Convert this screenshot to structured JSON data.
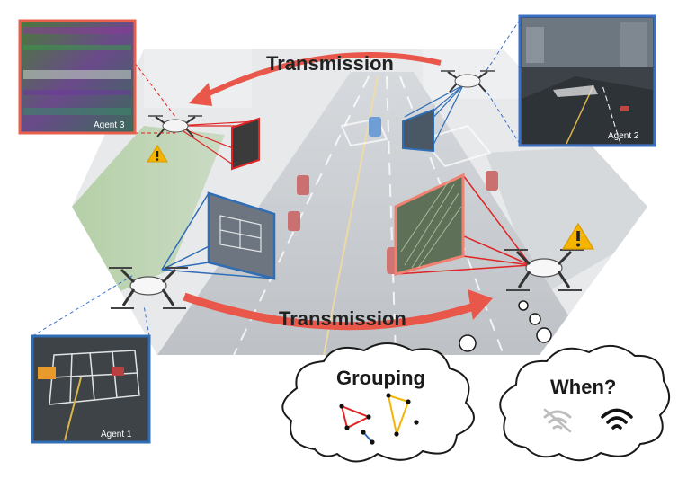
{
  "labels": {
    "transmission_top": "Transmission",
    "transmission_bottom": "Transmission",
    "agent1": "Agent 1",
    "agent2": "Agent 2",
    "agent3": "Agent 3",
    "grouping": "Grouping",
    "when": "When?"
  },
  "icons": {
    "warning": "warning-triangle-icon",
    "wifi_weak": "wifi-off-icon",
    "wifi_strong": "wifi-icon",
    "drone": "drone-icon"
  },
  "colors": {
    "agent1_border": "#2f6db5",
    "agent2_border": "#3a6fc4",
    "agent3_border": "#e8604c",
    "arrow": "#e8574a",
    "warning": "#f5b400",
    "group_red": "#e02424",
    "group_yellow": "#f2b705",
    "group_blue": "#2f6db5"
  }
}
